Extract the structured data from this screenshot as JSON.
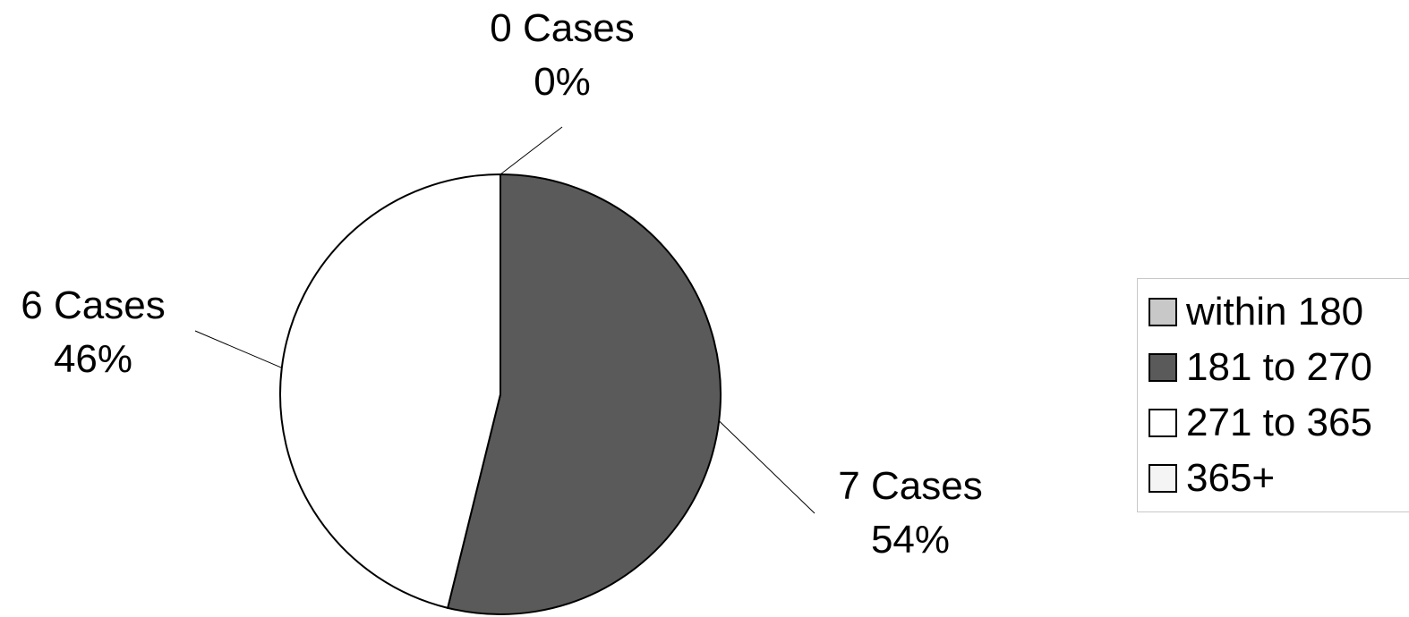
{
  "chart_data": {
    "type": "pie",
    "title": "",
    "slices": [
      {
        "name": "within 180",
        "value": 0,
        "percent": 0,
        "label_top": "0 Cases",
        "label_bottom": "0%",
        "color": "#c8c8c8"
      },
      {
        "name": "181 to 270",
        "value": 7,
        "percent": 54,
        "label_top": "7 Cases",
        "label_bottom": "54%",
        "color": "#5a5a5a"
      },
      {
        "name": "271 to 365",
        "value": 6,
        "percent": 46,
        "label_top": "6 Cases",
        "label_bottom": "46%",
        "color": "#ffffff"
      },
      {
        "name": "365+",
        "value": 0,
        "color": "#f4f4f4"
      }
    ],
    "legend": {
      "position": "right",
      "items": [
        "within 180",
        "181 to 270",
        "271 to 365",
        "365+"
      ]
    }
  }
}
